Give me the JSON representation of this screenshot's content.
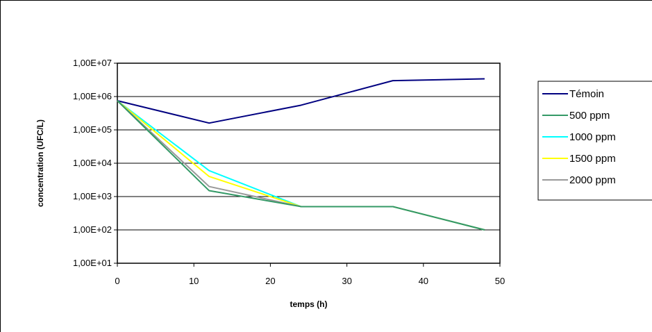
{
  "chart_data": {
    "type": "line",
    "title": "",
    "xlabel": "temps (h)",
    "ylabel": "concentration (UFC/L)",
    "xlim": [
      0,
      50
    ],
    "ylim": [
      10,
      10000000
    ],
    "y_scale": "log",
    "x_ticks": [
      0,
      10,
      20,
      30,
      40,
      50
    ],
    "x_tick_labels": [
      "0",
      "10",
      "20",
      "30",
      "40",
      "50"
    ],
    "y_ticks": [
      10,
      100,
      1000,
      10000,
      100000,
      1000000,
      10000000
    ],
    "y_tick_labels": [
      "1,00E+01",
      "1,00E+02",
      "1,00E+03",
      "1,00E+04",
      "1,00E+05",
      "1,00E+06",
      "1,00E+07"
    ],
    "grid": "horizontal",
    "legend_position": "right",
    "x": [
      0,
      12,
      24,
      36,
      48
    ],
    "series": [
      {
        "name": "Témoin",
        "color": "#000080",
        "values": [
          750000,
          160000,
          550000,
          3000000,
          3400000
        ]
      },
      {
        "name": "500 ppm",
        "color": "#339966",
        "values": [
          750000,
          1500,
          500,
          500,
          100
        ]
      },
      {
        "name": "1000 ppm",
        "color": "#00FFFF",
        "values": [
          750000,
          6000,
          500,
          500,
          100
        ]
      },
      {
        "name": "1500 ppm",
        "color": "#FFFF00",
        "values": [
          750000,
          4000,
          500,
          500,
          100
        ]
      },
      {
        "name": "2000 ppm",
        "color": "#999999",
        "values": [
          750000,
          2000,
          500,
          500,
          100
        ]
      }
    ]
  }
}
